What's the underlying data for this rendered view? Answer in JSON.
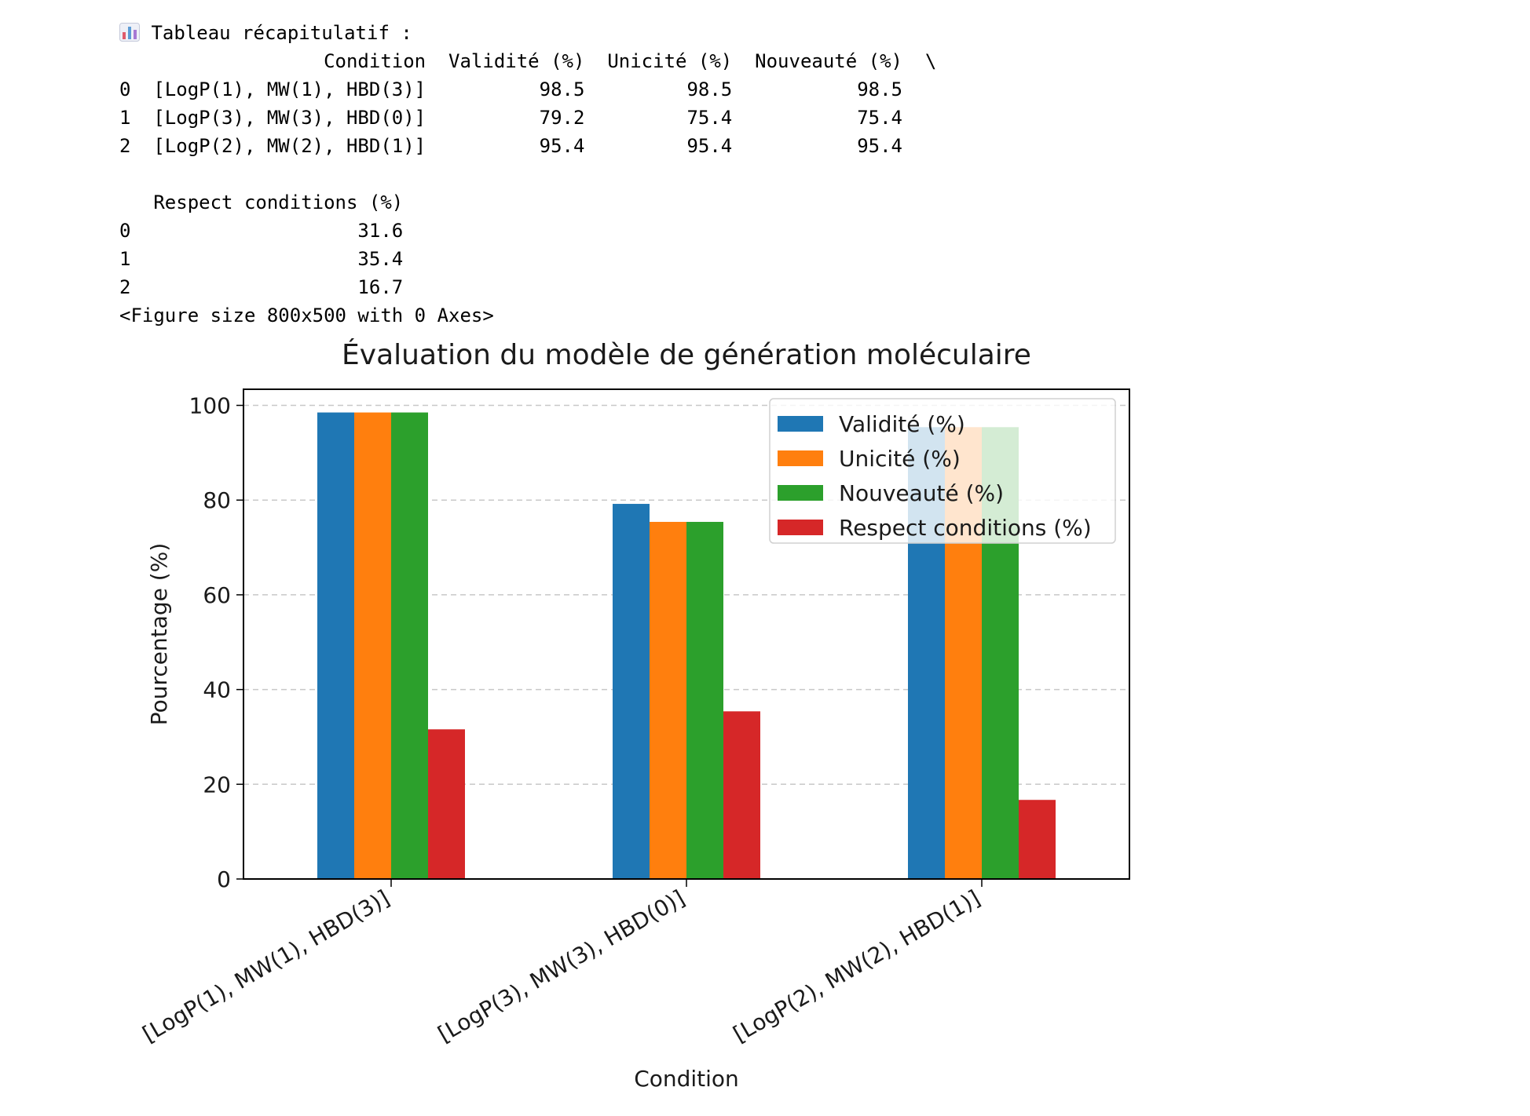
{
  "console": {
    "summary_icon": "bar-chart-emoji-icon",
    "summary_title": "Tableau récapitulatif :",
    "table1_header": "                  Condition  Validité (%)  Unicité (%)  Nouveauté (%)  \\",
    "table1_rows": [
      "0  [LogP(1), MW(1), HBD(3)]          98.5         98.5           98.5",
      "1  [LogP(3), MW(3), HBD(0)]          79.2         75.4           75.4",
      "2  [LogP(2), MW(2), HBD(1)]          95.4         95.4           95.4"
    ],
    "blank_line": "",
    "table2_header": "   Respect conditions (%)",
    "table2_rows": [
      "0                    31.6",
      "1                    35.4",
      "2                    16.7"
    ],
    "figure_note": "<Figure size 800x500 with 0 Axes>"
  },
  "chart_data": {
    "type": "bar",
    "title": "Évaluation du modèle de génération moléculaire",
    "xlabel": "Condition",
    "ylabel": "Pourcentage (%)",
    "categories": [
      "[LogP(1), MW(1), HBD(3)]",
      "[LogP(3), MW(3), HBD(0)]",
      "[LogP(2), MW(2), HBD(1)]"
    ],
    "series": [
      {
        "name": "Validité (%)",
        "values": [
          98.5,
          79.2,
          95.4
        ],
        "color": "#1f77b4"
      },
      {
        "name": "Unicité (%)",
        "values": [
          98.5,
          75.4,
          95.4
        ],
        "color": "#ff7f0e"
      },
      {
        "name": "Nouveauté (%)",
        "values": [
          98.5,
          75.4,
          95.4
        ],
        "color": "#2ca02c"
      },
      {
        "name": "Respect conditions (%)",
        "values": [
          31.6,
          35.4,
          16.7
        ],
        "color": "#d62728"
      }
    ],
    "ylim": [
      0,
      103.4
    ],
    "yticks": [
      0,
      20,
      40,
      60,
      80,
      100
    ],
    "grid": "y-dashed",
    "legend_position": "upper right"
  }
}
